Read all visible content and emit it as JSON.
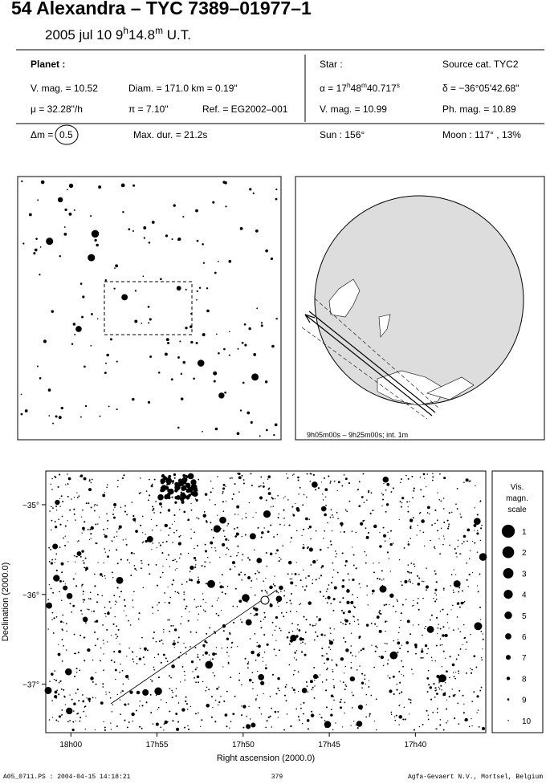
{
  "header": {
    "title": "54 Alexandra  –  TYC 7389–01977–1",
    "date": [
      "2005 jul 10   9",
      "h",
      "14.8",
      "m",
      " U.T."
    ]
  },
  "planet": {
    "label": "Planet :",
    "vmag": "V. mag. = 10.52",
    "diam": "Diam. = 171.0 km = 0.19\"",
    "mu": "μ = 32.28\"/h",
    "pi": "π = 7.10\"",
    "ref": "Ref. = EG2002–001"
  },
  "star": {
    "label": "Star :",
    "source": "Source cat.  TYC2",
    "alpha": [
      "α = 17",
      "h",
      "48",
      "m",
      "40.717",
      "s"
    ],
    "delta": "δ = −36°05'42.68\"",
    "vmag": "V. mag. = 10.99",
    "phmag": "Ph. mag. = 10.89"
  },
  "summary": {
    "dm_label": "Δm =",
    "dm_value": "0.5",
    "maxdur": "Max. dur. = 21.2s",
    "sun": "Sun : 156°",
    "moon": "Moon : 117° , 13%"
  },
  "globe": {
    "caption": "9h05m00s –  9h25m00s; int.  1m"
  },
  "chart_data": {
    "type": "scatter",
    "xlabel": "Right ascension (2000.0)",
    "ylabel": "Declination (2000.0)",
    "xlim": [
      18.0243,
      17.5986
    ],
    "ylim": [
      -37.54,
      -34.625
    ],
    "xticks": [
      {
        "value": 18,
        "label": "18h00"
      },
      {
        "value": 17.9167,
        "label": "17h55"
      },
      {
        "value": 17.8333,
        "label": "17h50"
      },
      {
        "value": 17.75,
        "label": "17h45"
      },
      {
        "value": 17.6667,
        "label": "17h40"
      }
    ],
    "yticks": [
      {
        "value": -35,
        "label": "−35°"
      },
      {
        "value": -36,
        "label": "−36°"
      },
      {
        "value": -37,
        "label": "−37°"
      }
    ],
    "legend_title": [
      "Vis.",
      "magn.",
      "scale"
    ],
    "magnitudes": [
      1,
      2,
      3,
      4,
      5,
      6,
      7,
      8,
      9,
      10
    ]
  },
  "footer": {
    "left": "A05_0711.PS : 2004-04-15 14:18:21",
    "center": "379",
    "right": "Agfa-Gevaert N.V., Mortsel, Belgium"
  }
}
